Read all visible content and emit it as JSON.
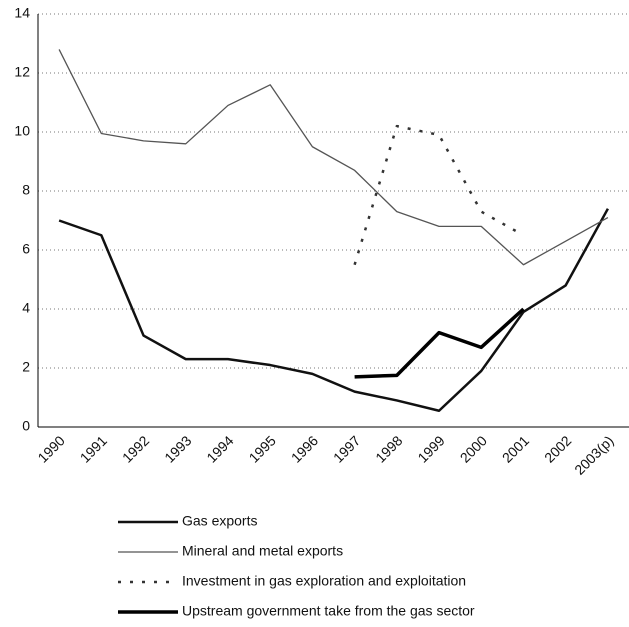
{
  "chart_data": {
    "type": "line",
    "categories": [
      "1990",
      "1991",
      "1992",
      "1993",
      "1994",
      "1995",
      "1996",
      "1997",
      "1998",
      "1999",
      "2000",
      "2001",
      "2002",
      "2003(p)"
    ],
    "series": [
      {
        "name": "Gas exports",
        "color": "#111111",
        "values": [
          7.0,
          6.5,
          3.1,
          2.3,
          2.3,
          2.1,
          1.8,
          1.2,
          0.9,
          0.55,
          1.9,
          3.9,
          4.8,
          7.4
        ]
      },
      {
        "name": "Mineral and metal exports",
        "color": "#555555",
        "values": [
          12.8,
          9.95,
          9.7,
          9.6,
          10.9,
          11.6,
          9.5,
          8.7,
          7.3,
          6.8,
          6.8,
          5.5,
          6.3,
          7.1
        ]
      },
      {
        "name": "Investment in gas exploration and exploitation",
        "color": "#333333",
        "values": [
          null,
          null,
          null,
          null,
          null,
          null,
          null,
          5.5,
          10.2,
          9.9,
          7.3,
          6.5,
          null,
          null
        ]
      },
      {
        "name": "Upstream government take from the gas sector",
        "color": "#000000",
        "values": [
          null,
          null,
          null,
          null,
          null,
          null,
          null,
          1.7,
          1.75,
          3.2,
          2.7,
          4.0,
          null,
          null
        ]
      }
    ],
    "ylim": [
      0,
      14
    ],
    "yticks": [
      0,
      2,
      4,
      6,
      8,
      10,
      12,
      14
    ],
    "grid": true
  }
}
